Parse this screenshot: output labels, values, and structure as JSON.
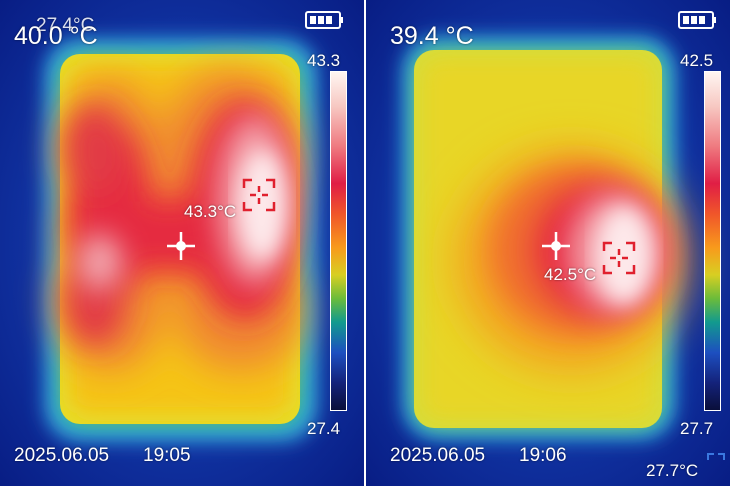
{
  "left": {
    "center_temp": "40.0 °C",
    "underlying_temp": "27.4°C",
    "max_label": "43.3°C",
    "scale_max": "43.3",
    "scale_min": "27.4",
    "date": "2025.06.05",
    "time": "19:05"
  },
  "right": {
    "center_temp": "39.4 °C",
    "max_label": "42.5°C",
    "scale_max": "42.5",
    "scale_min": "27.7",
    "date": "2025.06.05",
    "time": "19:06",
    "min_label": "27.7°C"
  },
  "icons": {
    "battery": "battery-icon",
    "crosshair": "center-crosshair-icon",
    "hotspot": "hotspot-target-icon"
  },
  "colors": {
    "background": "#0a1a8a",
    "hot": "#fff4f0",
    "warm": "#e8203e",
    "mid": "#f7c21a",
    "cool": "#2f8fd8"
  }
}
